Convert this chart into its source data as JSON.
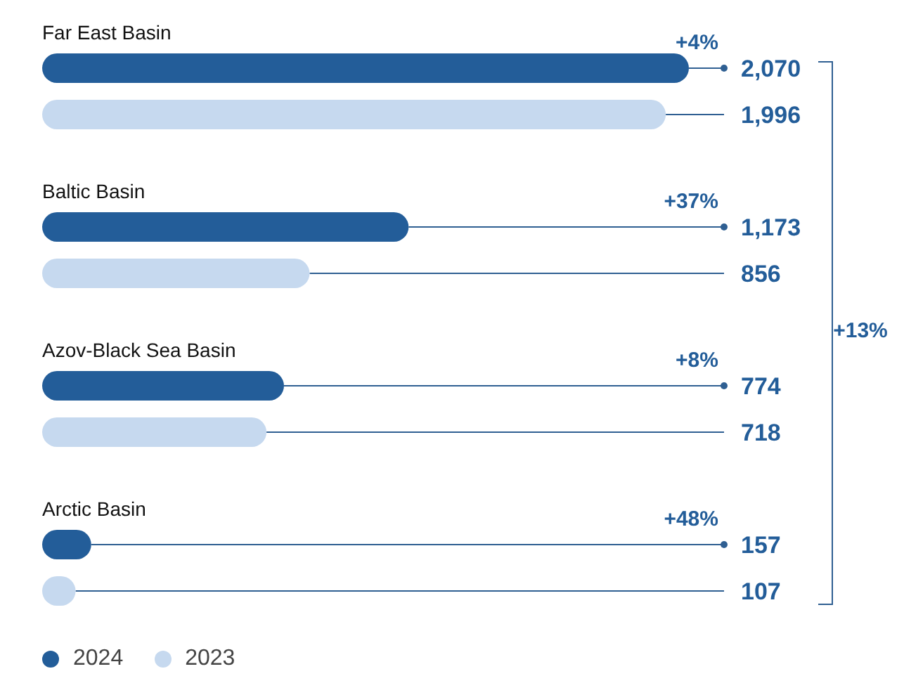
{
  "chart_data": {
    "type": "bar",
    "orientation": "horizontal",
    "categories": [
      "Far East Basin",
      "Baltic Basin",
      "Azov-Black Sea Basin",
      "Arctic Basin"
    ],
    "series": [
      {
        "name": "2024",
        "color": "#235d99",
        "values": [
          2070,
          1173,
          774,
          157
        ],
        "value_labels": [
          "2,070",
          "1,173",
          "774",
          "157"
        ]
      },
      {
        "name": "2023",
        "color": "#c6d9ef",
        "values": [
          1996,
          856,
          718,
          107
        ],
        "value_labels": [
          "1,996",
          "856",
          "718",
          "107"
        ]
      }
    ],
    "legend": "bottom left",
    "annotations": [
      "+4%",
      "+37%",
      "+8%",
      "+48%",
      "+13%"
    ]
  }
}
